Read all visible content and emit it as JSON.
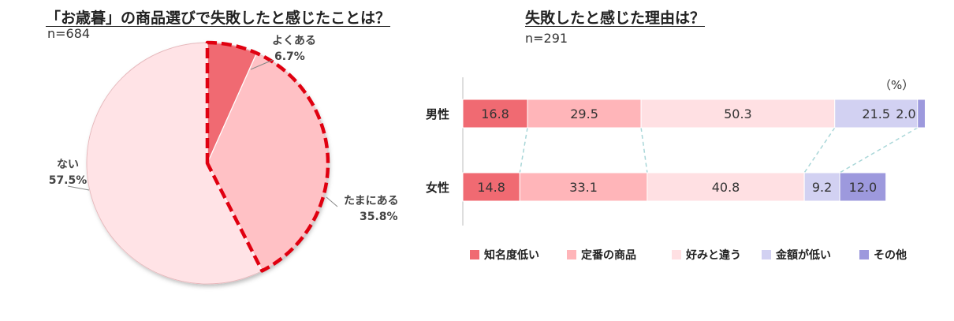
{
  "left_chart": {
    "title": "「お歳暮」の商品選びで失敗したと感じたことは？",
    "n_label": "n=684"
  },
  "right_chart": {
    "title": "失敗したと感じた理由は？",
    "n_label": "n=291",
    "unit_label": "（%）"
  },
  "chart_data": [
    {
      "type": "pie",
      "title": "「お歳暮」の商品選びで失敗したと感じたことは？",
      "slices": [
        {
          "label": "よくある",
          "value": 6.7,
          "value_label": "6.7%",
          "color": "#f06a72"
        },
        {
          "label": "たまにある",
          "value": 35.8,
          "value_label": "35.8%",
          "color": "#ffc1c5"
        },
        {
          "label": "ない",
          "value": 57.5,
          "value_label": "57.5%",
          "color": "#ffe3e6"
        }
      ],
      "highlight_border_color": "#e00010"
    },
    {
      "type": "bar",
      "orientation": "horizontal",
      "stacked": true,
      "title": "失敗したと感じた理由は？",
      "categories": [
        "男性",
        "女性"
      ],
      "series": [
        {
          "name": "知名度低い",
          "color": "#f06a72",
          "values": [
            16.8,
            14.8
          ],
          "value_labels": [
            "16.8",
            "14.8"
          ]
        },
        {
          "name": "定番の商品",
          "color": "#ffb5b9",
          "values": [
            29.5,
            33.1
          ],
          "value_labels": [
            "29.5",
            "33.1"
          ]
        },
        {
          "name": "好みと違う",
          "color": "#ffe0e3",
          "values": [
            50.3,
            40.8
          ],
          "value_labels": [
            "50.3",
            "40.8"
          ]
        },
        {
          "name": "金額が低い",
          "color": "#d2d1f2",
          "values": [
            21.5,
            9.2
          ],
          "value_labels": [
            "21.5",
            "9.2"
          ]
        },
        {
          "name": "その他",
          "color": "#9d99dd",
          "values": [
            2.0,
            12.0
          ],
          "value_labels": [
            "2.0",
            "12.0"
          ]
        }
      ],
      "legend_position": "bottom",
      "connector_lines": "dashed",
      "connector_color": "#a8d6d8"
    }
  ]
}
